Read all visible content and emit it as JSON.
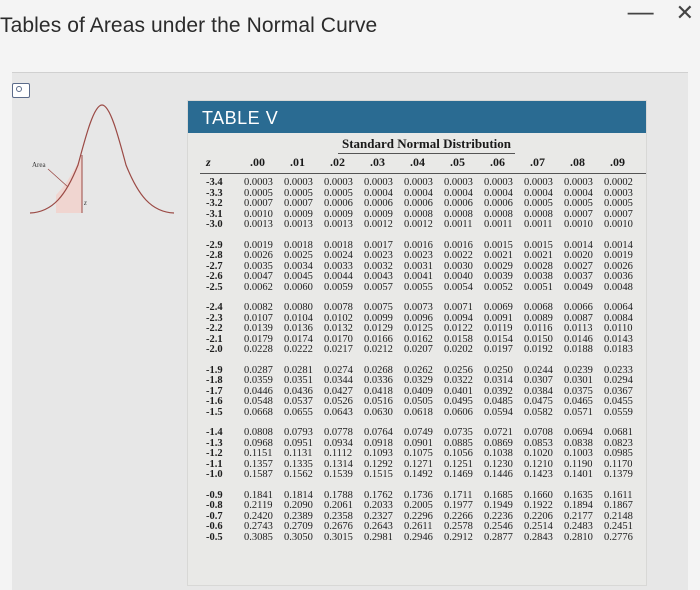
{
  "window": {
    "title": "Tables of Areas under the Normal Curve",
    "minimize_glyph": "—",
    "close_glyph": "✕"
  },
  "figure": {
    "area_label": "Area",
    "z_label": "z"
  },
  "table": {
    "label": "TABLE V",
    "title": "Standard Normal Distribution",
    "headers": [
      "z",
      ".00",
      ".01",
      ".02",
      ".03",
      ".04",
      ".05",
      ".06",
      ".07",
      ".08",
      ".09"
    ],
    "groups": [
      [
        [
          "-3.4",
          "0.0003",
          "0.0003",
          "0.0003",
          "0.0003",
          "0.0003",
          "0.0003",
          "0.0003",
          "0.0003",
          "0.0003",
          "0.0002"
        ],
        [
          "-3.3",
          "0.0005",
          "0.0005",
          "0.0005",
          "0.0004",
          "0.0004",
          "0.0004",
          "0.0004",
          "0.0004",
          "0.0004",
          "0.0003"
        ],
        [
          "-3.2",
          "0.0007",
          "0.0007",
          "0.0006",
          "0.0006",
          "0.0006",
          "0.0006",
          "0.0006",
          "0.0005",
          "0.0005",
          "0.0005"
        ],
        [
          "-3.1",
          "0.0010",
          "0.0009",
          "0.0009",
          "0.0009",
          "0.0008",
          "0.0008",
          "0.0008",
          "0.0008",
          "0.0007",
          "0.0007"
        ],
        [
          "-3.0",
          "0.0013",
          "0.0013",
          "0.0013",
          "0.0012",
          "0.0012",
          "0.0011",
          "0.0011",
          "0.0011",
          "0.0010",
          "0.0010"
        ]
      ],
      [
        [
          "-2.9",
          "0.0019",
          "0.0018",
          "0.0018",
          "0.0017",
          "0.0016",
          "0.0016",
          "0.0015",
          "0.0015",
          "0.0014",
          "0.0014"
        ],
        [
          "-2.8",
          "0.0026",
          "0.0025",
          "0.0024",
          "0.0023",
          "0.0023",
          "0.0022",
          "0.0021",
          "0.0021",
          "0.0020",
          "0.0019"
        ],
        [
          "-2.7",
          "0.0035",
          "0.0034",
          "0.0033",
          "0.0032",
          "0.0031",
          "0.0030",
          "0.0029",
          "0.0028",
          "0.0027",
          "0.0026"
        ],
        [
          "-2.6",
          "0.0047",
          "0.0045",
          "0.0044",
          "0.0043",
          "0.0041",
          "0.0040",
          "0.0039",
          "0.0038",
          "0.0037",
          "0.0036"
        ],
        [
          "-2.5",
          "0.0062",
          "0.0060",
          "0.0059",
          "0.0057",
          "0.0055",
          "0.0054",
          "0.0052",
          "0.0051",
          "0.0049",
          "0.0048"
        ]
      ],
      [
        [
          "-2.4",
          "0.0082",
          "0.0080",
          "0.0078",
          "0.0075",
          "0.0073",
          "0.0071",
          "0.0069",
          "0.0068",
          "0.0066",
          "0.0064"
        ],
        [
          "-2.3",
          "0.0107",
          "0.0104",
          "0.0102",
          "0.0099",
          "0.0096",
          "0.0094",
          "0.0091",
          "0.0089",
          "0.0087",
          "0.0084"
        ],
        [
          "-2.2",
          "0.0139",
          "0.0136",
          "0.0132",
          "0.0129",
          "0.0125",
          "0.0122",
          "0.0119",
          "0.0116",
          "0.0113",
          "0.0110"
        ],
        [
          "-2.1",
          "0.0179",
          "0.0174",
          "0.0170",
          "0.0166",
          "0.0162",
          "0.0158",
          "0.0154",
          "0.0150",
          "0.0146",
          "0.0143"
        ],
        [
          "-2.0",
          "0.0228",
          "0.0222",
          "0.0217",
          "0.0212",
          "0.0207",
          "0.0202",
          "0.0197",
          "0.0192",
          "0.0188",
          "0.0183"
        ]
      ],
      [
        [
          "-1.9",
          "0.0287",
          "0.0281",
          "0.0274",
          "0.0268",
          "0.0262",
          "0.0256",
          "0.0250",
          "0.0244",
          "0.0239",
          "0.0233"
        ],
        [
          "-1.8",
          "0.0359",
          "0.0351",
          "0.0344",
          "0.0336",
          "0.0329",
          "0.0322",
          "0.0314",
          "0.0307",
          "0.0301",
          "0.0294"
        ],
        [
          "-1.7",
          "0.0446",
          "0.0436",
          "0.0427",
          "0.0418",
          "0.0409",
          "0.0401",
          "0.0392",
          "0.0384",
          "0.0375",
          "0.0367"
        ],
        [
          "-1.6",
          "0.0548",
          "0.0537",
          "0.0526",
          "0.0516",
          "0.0505",
          "0.0495",
          "0.0485",
          "0.0475",
          "0.0465",
          "0.0455"
        ],
        [
          "-1.5",
          "0.0668",
          "0.0655",
          "0.0643",
          "0.0630",
          "0.0618",
          "0.0606",
          "0.0594",
          "0.0582",
          "0.0571",
          "0.0559"
        ]
      ],
      [
        [
          "-1.4",
          "0.0808",
          "0.0793",
          "0.0778",
          "0.0764",
          "0.0749",
          "0.0735",
          "0.0721",
          "0.0708",
          "0.0694",
          "0.0681"
        ],
        [
          "-1.3",
          "0.0968",
          "0.0951",
          "0.0934",
          "0.0918",
          "0.0901",
          "0.0885",
          "0.0869",
          "0.0853",
          "0.0838",
          "0.0823"
        ],
        [
          "-1.2",
          "0.1151",
          "0.1131",
          "0.1112",
          "0.1093",
          "0.1075",
          "0.1056",
          "0.1038",
          "0.1020",
          "0.1003",
          "0.0985"
        ],
        [
          "-1.1",
          "0.1357",
          "0.1335",
          "0.1314",
          "0.1292",
          "0.1271",
          "0.1251",
          "0.1230",
          "0.1210",
          "0.1190",
          "0.1170"
        ],
        [
          "-1.0",
          "0.1587",
          "0.1562",
          "0.1539",
          "0.1515",
          "0.1492",
          "0.1469",
          "0.1446",
          "0.1423",
          "0.1401",
          "0.1379"
        ]
      ],
      [
        [
          "-0.9",
          "0.1841",
          "0.1814",
          "0.1788",
          "0.1762",
          "0.1736",
          "0.1711",
          "0.1685",
          "0.1660",
          "0.1635",
          "0.1611"
        ],
        [
          "-0.8",
          "0.2119",
          "0.2090",
          "0.2061",
          "0.2033",
          "0.2005",
          "0.1977",
          "0.1949",
          "0.1922",
          "0.1894",
          "0.1867"
        ],
        [
          "-0.7",
          "0.2420",
          "0.2389",
          "0.2358",
          "0.2327",
          "0.2296",
          "0.2266",
          "0.2236",
          "0.2206",
          "0.2177",
          "0.2148"
        ],
        [
          "-0.6",
          "0.2743",
          "0.2709",
          "0.2676",
          "0.2643",
          "0.2611",
          "0.2578",
          "0.2546",
          "0.2514",
          "0.2483",
          "0.2451"
        ],
        [
          "-0.5",
          "0.3085",
          "0.3050",
          "0.3015",
          "0.2981",
          "0.2946",
          "0.2912",
          "0.2877",
          "0.2843",
          "0.2810",
          "0.2776"
        ]
      ]
    ]
  }
}
